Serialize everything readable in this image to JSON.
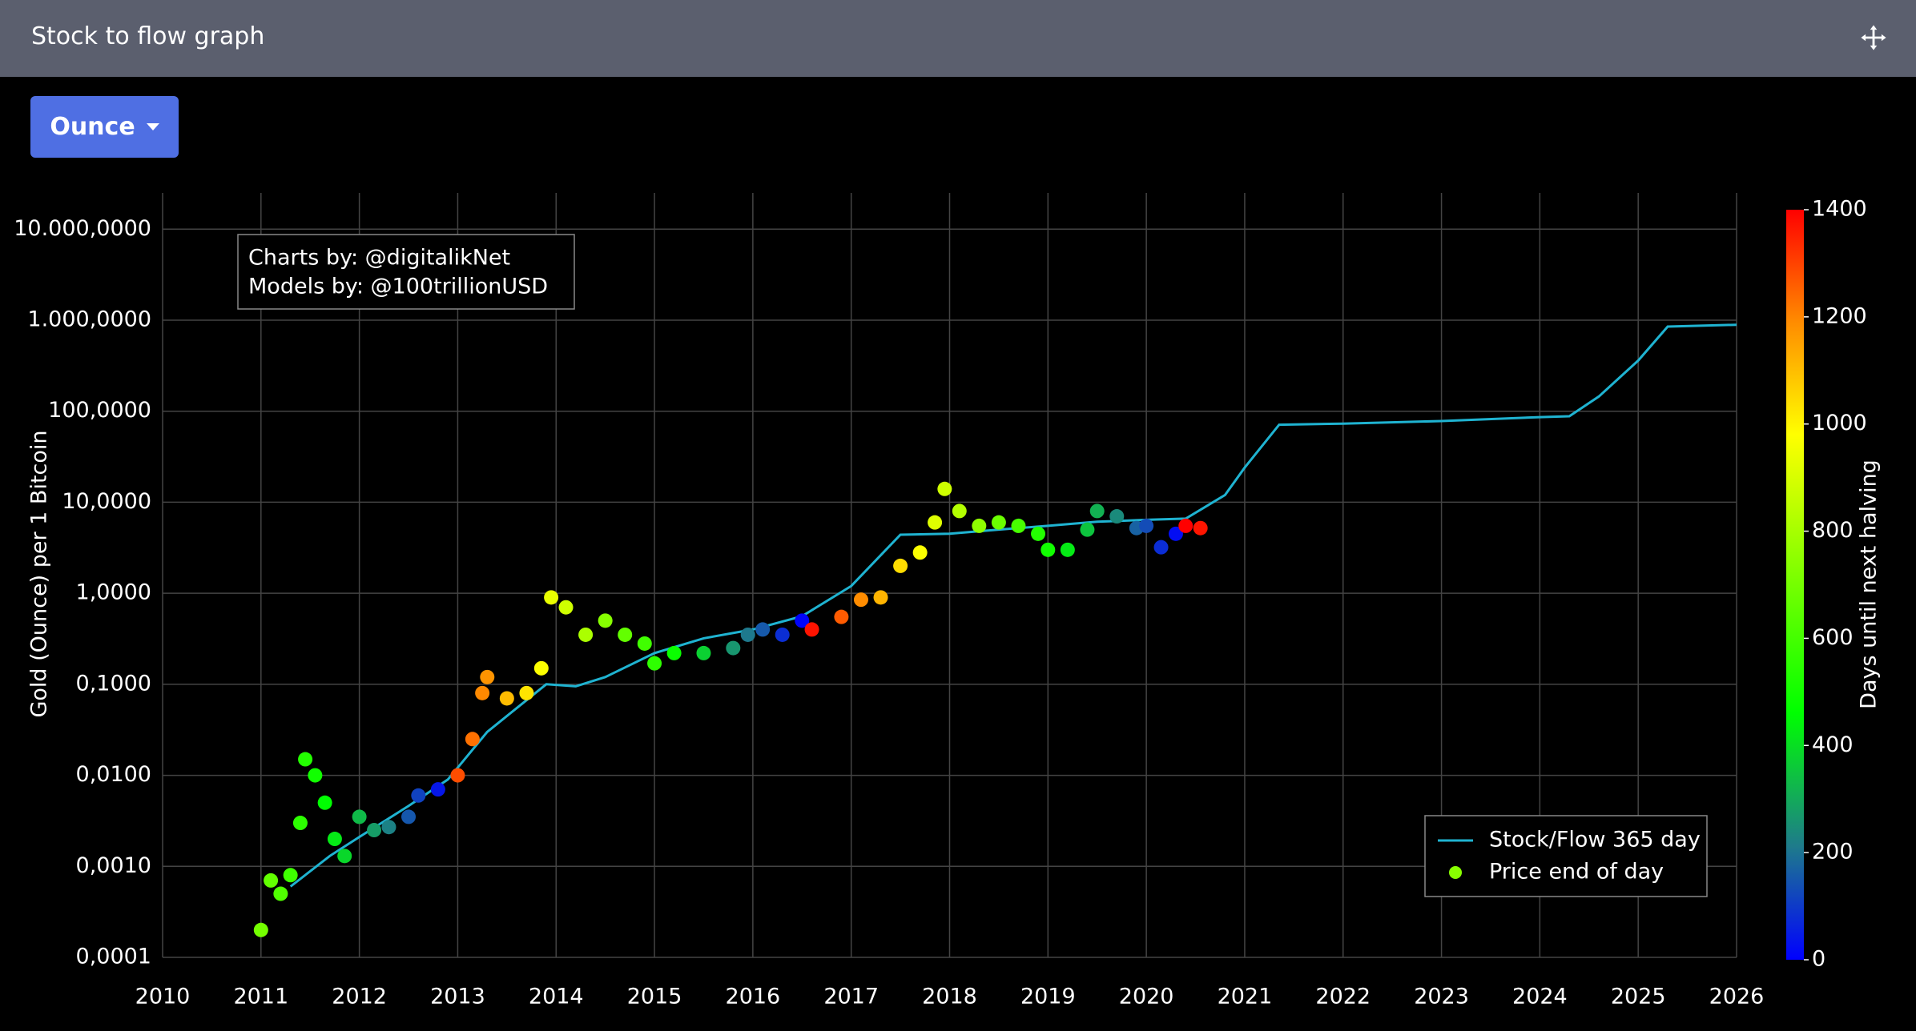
{
  "header": {
    "title": "Stock to flow graph"
  },
  "unit_button": {
    "label": "Ounce"
  },
  "chart_data": {
    "type": "scatter",
    "y_label": "Gold (Ounce) per 1 Bitcoin",
    "annotation": [
      "Charts by: @digitalikNet",
      "Models by: @100trillionUSD"
    ],
    "log_y": true,
    "grid": true,
    "legend_position": "bottom-right",
    "xlim": [
      2010,
      2026
    ],
    "xticks": [
      2010,
      2011,
      2012,
      2013,
      2014,
      2015,
      2016,
      2017,
      2018,
      2019,
      2020,
      2021,
      2022,
      2023,
      2024,
      2025,
      2026
    ],
    "ylim": [
      0.0001,
      25000
    ],
    "yticks": [
      {
        "value": 0.0001,
        "label": "0,0001"
      },
      {
        "value": 0.001,
        "label": "0,0010"
      },
      {
        "value": 0.01,
        "label": "0,0100"
      },
      {
        "value": 0.1,
        "label": "0,1000"
      },
      {
        "value": 1,
        "label": "1,0000"
      },
      {
        "value": 10,
        "label": "10,0000"
      },
      {
        "value": 100,
        "label": "100,0000"
      },
      {
        "value": 1000,
        "label": "1.000,0000"
      },
      {
        "value": 10000,
        "label": "10.000,0000"
      }
    ],
    "colorbar": {
      "title": "Days until next halving",
      "zlim": [
        0,
        1400
      ],
      "ticks": [
        0,
        200,
        400,
        600,
        800,
        1000,
        1200,
        1400
      ],
      "colorscale": [
        [
          0,
          "#0000ff"
        ],
        [
          0.15,
          "#1e7a8c"
        ],
        [
          0.33,
          "#00ff00"
        ],
        [
          0.7,
          "#ffff00"
        ],
        [
          0.85,
          "#ff8c00"
        ],
        [
          1,
          "#ff0000"
        ]
      ]
    },
    "series": [
      {
        "name": "Stock/Flow 365 day",
        "mode": "line",
        "color": "#1fb3d1",
        "x": [
          2011.3,
          2011.7,
          2012.0,
          2012.5,
          2012.9,
          2013.3,
          2013.9,
          2014.2,
          2014.5,
          2015.0,
          2015.5,
          2016.0,
          2016.5,
          2017.0,
          2017.5,
          2018.0,
          2018.5,
          2019.0,
          2019.5,
          2020.0,
          2020.4,
          2020.8,
          2021.0,
          2021.35,
          2022.0,
          2023.0,
          2024.0,
          2024.3,
          2024.6,
          2025.0,
          2025.3,
          2026.0
        ],
        "values": [
          0.0006,
          0.0013,
          0.0021,
          0.0046,
          0.009,
          0.03,
          0.1,
          0.095,
          0.12,
          0.22,
          0.32,
          0.4,
          0.56,
          1.2,
          4.4,
          4.5,
          5.0,
          5.5,
          6.1,
          6.4,
          6.6,
          12,
          24,
          71,
          73,
          78,
          86,
          88,
          145,
          360,
          850,
          890
        ]
      },
      {
        "name": "Price end of day",
        "mode": "markers",
        "color": "#88ff00",
        "x": [
          2011.0,
          2011.1,
          2011.2,
          2011.3,
          2011.4,
          2011.45,
          2011.55,
          2011.65,
          2011.75,
          2011.85,
          2012.0,
          2012.15,
          2012.3,
          2012.5,
          2012.6,
          2012.8,
          2013.0,
          2013.15,
          2013.25,
          2013.3,
          2013.5,
          2013.7,
          2013.85,
          2013.95,
          2014.1,
          2014.3,
          2014.5,
          2014.7,
          2014.9,
          2015.0,
          2015.2,
          2015.5,
          2015.8,
          2015.95,
          2016.1,
          2016.3,
          2016.5,
          2016.6,
          2016.9,
          2017.1,
          2017.3,
          2017.5,
          2017.7,
          2017.85,
          2017.95,
          2018.1,
          2018.3,
          2018.5,
          2018.7,
          2018.9,
          2019.0,
          2019.2,
          2019.4,
          2019.5,
          2019.7,
          2019.9,
          2020.0,
          2020.15,
          2020.3,
          2020.4,
          2020.55
        ],
        "values": [
          0.0002,
          0.0007,
          0.0005,
          0.0008,
          0.003,
          0.015,
          0.01,
          0.005,
          0.002,
          0.0013,
          0.0035,
          0.0025,
          0.0027,
          0.0035,
          0.006,
          0.007,
          0.01,
          0.025,
          0.08,
          0.12,
          0.07,
          0.08,
          0.15,
          0.9,
          0.7,
          0.35,
          0.5,
          0.35,
          0.28,
          0.17,
          0.22,
          0.22,
          0.25,
          0.35,
          0.4,
          0.35,
          0.5,
          0.4,
          0.55,
          0.85,
          0.9,
          2.0,
          2.8,
          6,
          14,
          8,
          5.5,
          6,
          5.5,
          4.5,
          3.0,
          3.0,
          5,
          8,
          7,
          5.2,
          5.5,
          3.2,
          4.5,
          5.5,
          5.2
        ],
        "color_values": [
          697,
          661,
          624,
          588,
          551,
          533,
          496,
          460,
          423,
          387,
          332,
          277,
          223,
          150,
          113,
          40,
          1285,
          1230,
          1194,
          1175,
          1102,
          1029,
          975,
          938,
          883,
          810,
          737,
          664,
          591,
          555,
          482,
          372,
          263,
          208,
          153,
          80,
          7,
          1372,
          1263,
          1190,
          1117,
          1044,
          971,
          916,
          880,
          825,
          752,
          679,
          606,
          533,
          497,
          424,
          350,
          314,
          241,
          168,
          131,
          77,
          22,
          1420,
          1369
        ]
      }
    ]
  }
}
